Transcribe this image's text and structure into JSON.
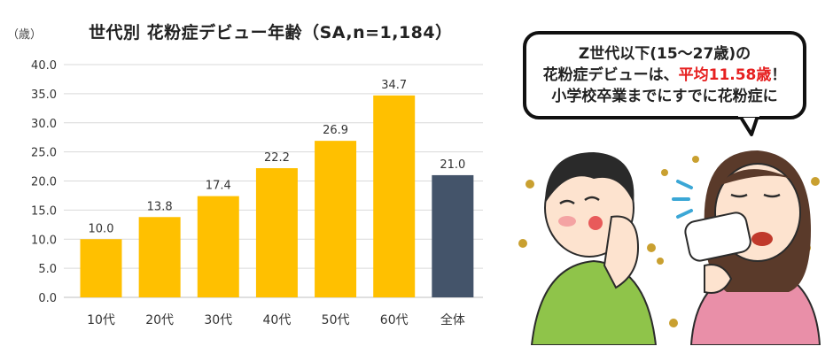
{
  "chart_data": {
    "type": "bar",
    "title": "世代別 花粉症デビュー年齢（SA,n=1,184）",
    "yunit": "（歳）",
    "categories": [
      "10代",
      "20代",
      "30代",
      "40代",
      "50代",
      "60代",
      "全体"
    ],
    "values": [
      10.0,
      13.8,
      17.4,
      22.2,
      26.9,
      34.7,
      21.0
    ],
    "value_labels": [
      "10.0",
      "13.8",
      "17.4",
      "22.2",
      "26.9",
      "34.7",
      "21.0"
    ],
    "ylim": [
      0,
      40
    ],
    "yticks": [
      "0.0",
      "5.0",
      "10.0",
      "15.0",
      "20.0",
      "25.0",
      "30.0",
      "35.0",
      "40.0"
    ],
    "grid": true,
    "colors": {
      "bar": "#FFC000",
      "total": "#44546A",
      "grid": "#d9d9d9"
    }
  },
  "callout": {
    "line1": "Z世代以下(15～27歳)の",
    "line2_prefix": "花粉症デビューは、",
    "line2_accent": "平均11.58歳",
    "line2_suffix": "！",
    "line3": "小学校卒業までにすでに花粉症に",
    "accent_color": "#e62020"
  }
}
